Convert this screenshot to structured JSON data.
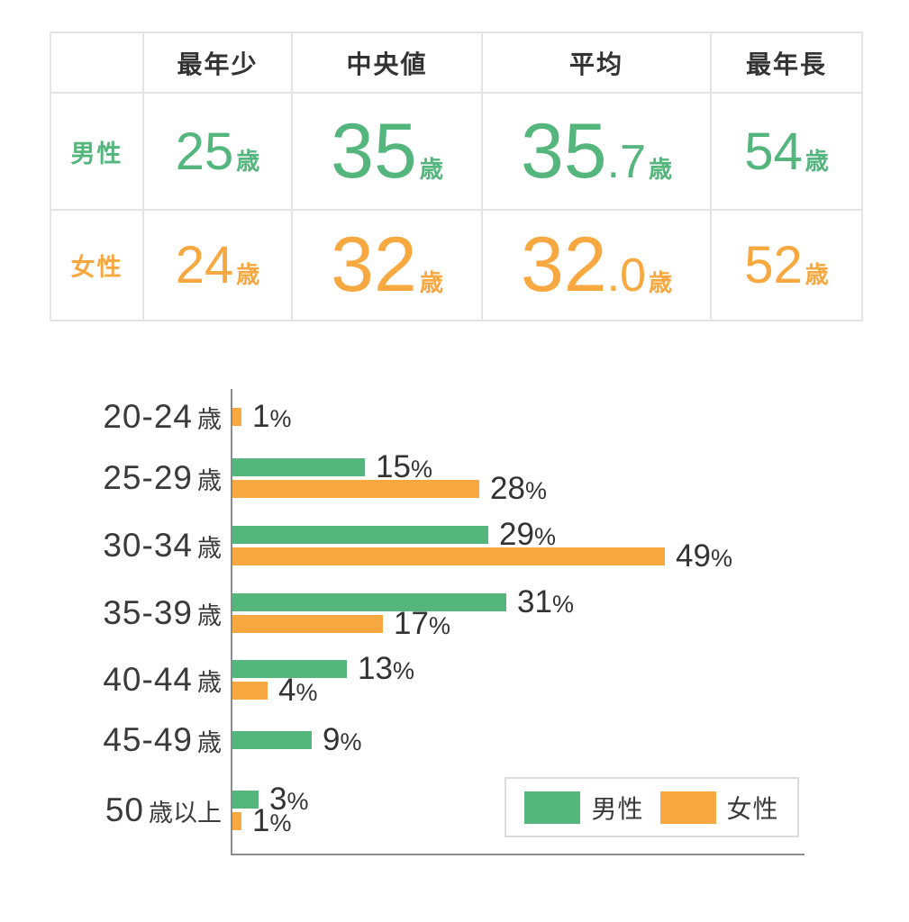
{
  "colors": {
    "male": "#55b67d",
    "female": "#f8a840",
    "text": "#333333",
    "table_border": "#e4e4e4",
    "axis": "#8c8c8c",
    "legend_border": "#dcdcdc"
  },
  "table": {
    "corner_label": "",
    "columns": [
      "最年少",
      "中央値",
      "平均",
      "最年長"
    ],
    "unit": "歳",
    "rows": [
      {
        "label": "男性",
        "series": "male",
        "cells": [
          {
            "num": "25",
            "frac": "",
            "size": "md"
          },
          {
            "num": "35",
            "frac": "",
            "size": "lg"
          },
          {
            "num": "35",
            "frac": ".7",
            "size": "lg"
          },
          {
            "num": "54",
            "frac": "",
            "size": "md"
          }
        ]
      },
      {
        "label": "女性",
        "series": "female",
        "cells": [
          {
            "num": "24",
            "frac": "",
            "size": "md"
          },
          {
            "num": "32",
            "frac": "",
            "size": "lg"
          },
          {
            "num": "32",
            "frac": ".0",
            "size": "lg"
          },
          {
            "num": "52",
            "frac": "",
            "size": "md"
          }
        ]
      }
    ]
  },
  "chart_data": {
    "type": "bar",
    "orientation": "horizontal",
    "unit": "%",
    "categories": [
      {
        "range": "20-24",
        "suffix": "歳"
      },
      {
        "range": "25-29",
        "suffix": "歳"
      },
      {
        "range": "30-34",
        "suffix": "歳"
      },
      {
        "range": "35-39",
        "suffix": "歳"
      },
      {
        "range": "40-44",
        "suffix": "歳"
      },
      {
        "range": "45-49",
        "suffix": "歳"
      },
      {
        "range": "50",
        "suffix": "歳以上"
      }
    ],
    "series": [
      {
        "name": "男性",
        "color_key": "male",
        "values": [
          0,
          15,
          29,
          31,
          13,
          9,
          3
        ]
      },
      {
        "name": "女性",
        "color_key": "female",
        "values": [
          1,
          28,
          49,
          17,
          4,
          0,
          1
        ]
      }
    ],
    "xlim": [
      0,
      50
    ],
    "value_labels": true,
    "hide_zero_bars": true,
    "grid": false,
    "legend_position": "bottom-right"
  },
  "legend": {
    "items": [
      {
        "label": "男性",
        "color_key": "male"
      },
      {
        "label": "女性",
        "color_key": "female"
      }
    ]
  }
}
